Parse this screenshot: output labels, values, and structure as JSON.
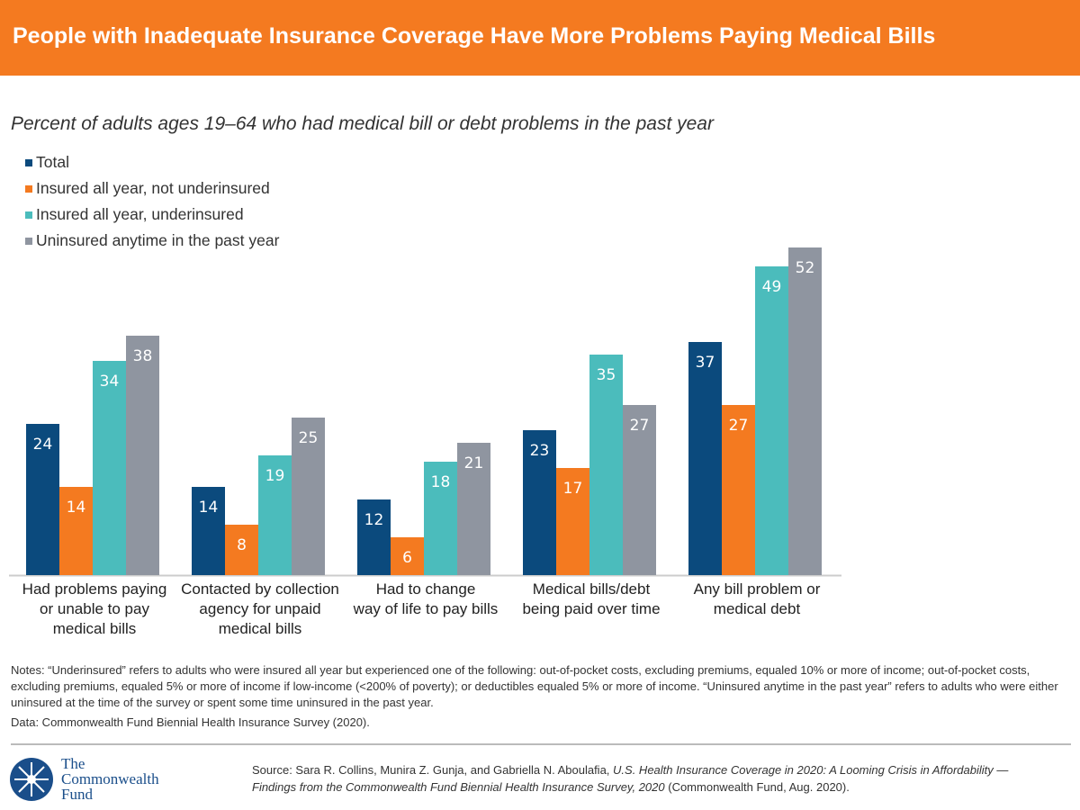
{
  "header": {
    "title": "People with Inadequate Insurance Coverage Have More Problems Paying Medical Bills"
  },
  "chart_data": {
    "type": "bar",
    "title": "Percent of adults ages 19–64 who had medical bill or debt problems in the past year",
    "categories": [
      [
        "Had problems paying",
        "or unable to pay",
        "medical bills"
      ],
      [
        "Contacted by collection",
        "agency for unpaid",
        "medical bills"
      ],
      [
        "Had to change",
        "way of life to pay bills"
      ],
      [
        "Medical bills/debt",
        "being paid over time"
      ],
      [
        "Any bill problem or",
        "medical debt"
      ]
    ],
    "series": [
      {
        "name": "Total",
        "color": "#0b4a7d",
        "values": [
          24,
          14,
          12,
          23,
          37
        ]
      },
      {
        "name": "Insured all year, not underinsured",
        "color": "#f47a20",
        "values": [
          14,
          8,
          6,
          17,
          27
        ]
      },
      {
        "name": "Insured all year, underinsured",
        "color": "#4bbcbc",
        "values": [
          34,
          19,
          18,
          35,
          49
        ]
      },
      {
        "name": "Uninsured anytime in the past year",
        "color": "#8f95a0",
        "values": [
          38,
          25,
          21,
          27,
          52
        ]
      }
    ],
    "ylim": [
      0,
      55
    ],
    "legend": "top-left",
    "grid": false
  },
  "notes": "Notes: “Underinsured” refers to adults who were insured all year but experienced one of the following: out-of-pocket costs, excluding premiums, equaled 10% or more of income; out-of-pocket costs, excluding premiums, equaled 5% or more of income if low-income (<200% of poverty); or deductibles equaled 5% or more of income. “Uninsured anytime in the past year” refers to adults who were either uninsured at the time of the survey or spent some time uninsured in the past year.",
  "data_line": "Data: Commonwealth Fund Biennial Health Insurance Survey (2020).",
  "logo": {
    "line1": "The",
    "line2": "Commonwealth",
    "line3": "Fund"
  },
  "source": {
    "prefix": "Source: Sara R. Collins, Munira Z. Gunja, and Gabriella N. Aboulafia, ",
    "title": "U.S. Health Insurance Coverage in 2020: A Looming Crisis in Affordability — Findings from the Commonwealth Fund Biennial Health Insurance Survey, 2020",
    "suffix": " (Commonwealth Fund, Aug. 2020)."
  }
}
